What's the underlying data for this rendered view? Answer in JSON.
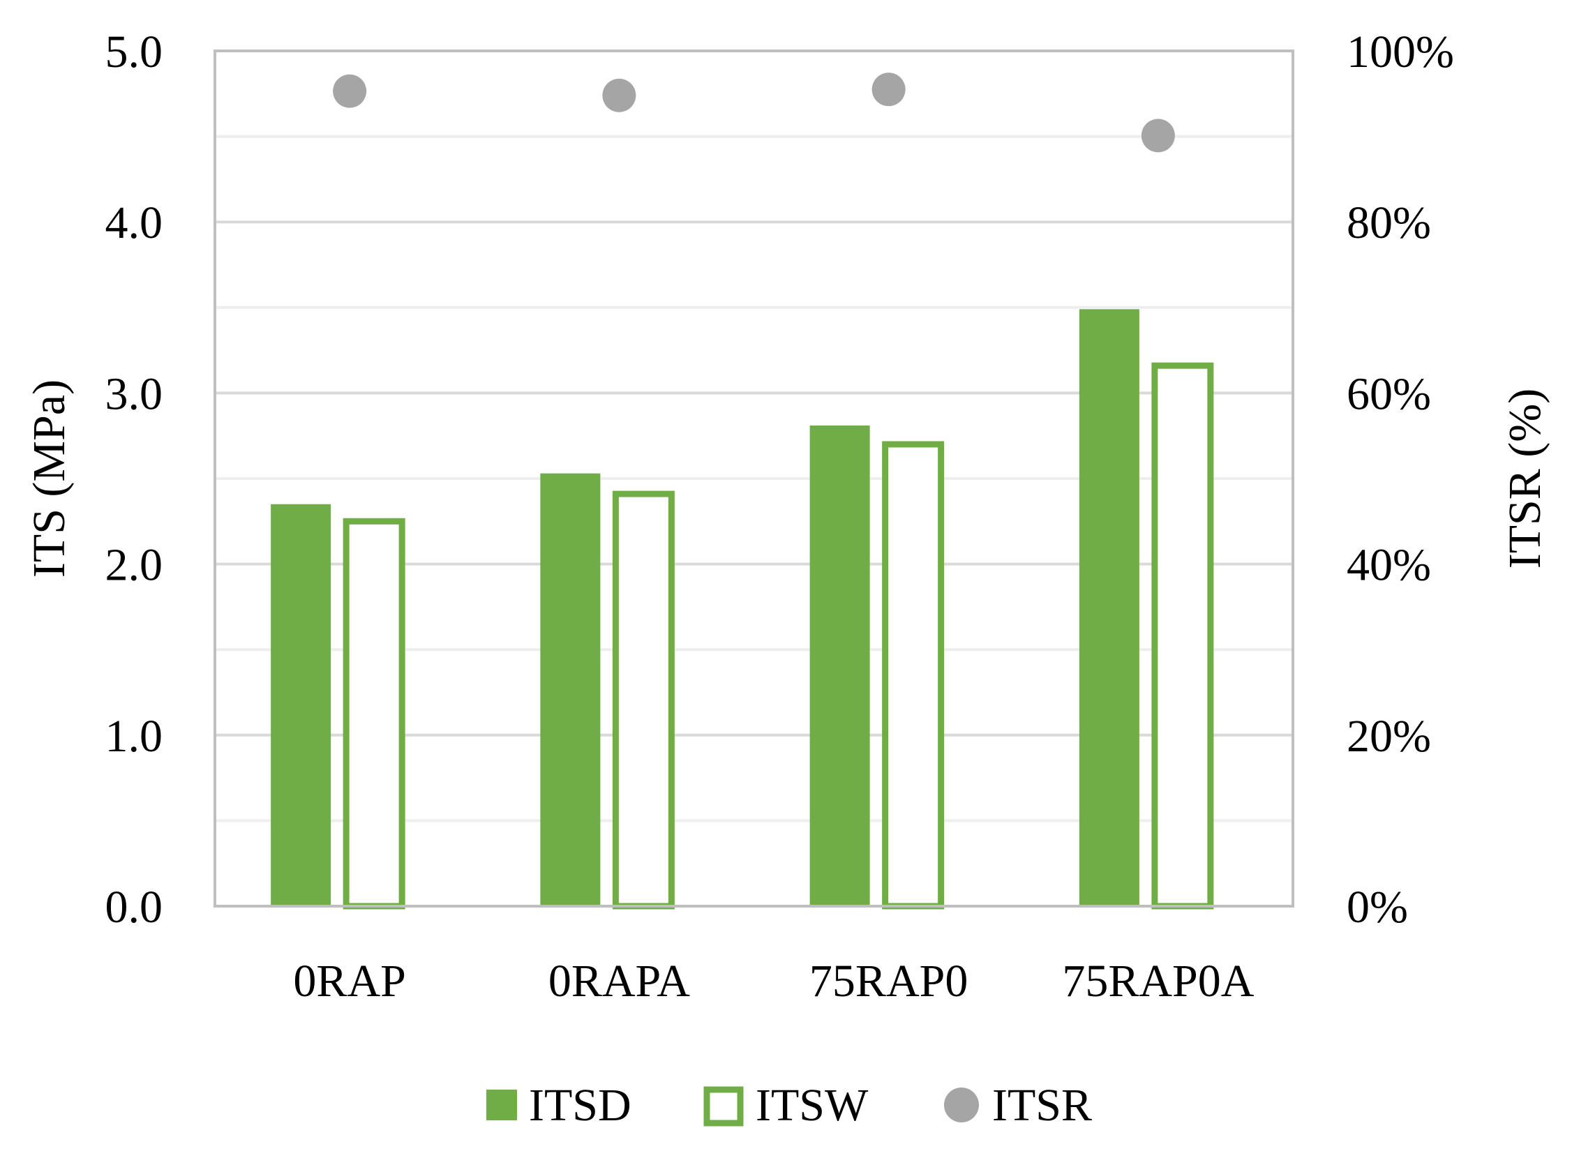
{
  "chart_data": {
    "type": "bar",
    "categories": [
      "0RAP",
      "0RAPA",
      "75RAP0",
      "75RAP0A"
    ],
    "series": [
      {
        "name": "ITSD",
        "kind": "bar",
        "axis": "left",
        "style": "filled",
        "values": [
          2.35,
          2.53,
          2.81,
          3.49
        ]
      },
      {
        "name": "ITSW",
        "kind": "bar",
        "axis": "left",
        "style": "outline",
        "values": [
          2.25,
          2.41,
          2.7,
          3.16
        ]
      },
      {
        "name": "ITSR",
        "kind": "scatter",
        "axis": "right",
        "values": [
          95.3,
          94.8,
          95.5,
          90.1
        ]
      }
    ],
    "ylabel": "ITS (MPa)",
    "y2label": "ITSR (%)",
    "ylim": [
      0,
      5
    ],
    "y2lim": [
      0,
      100
    ],
    "yticks": [
      "0.0",
      "1.0",
      "2.0",
      "3.0",
      "4.0",
      "5.0"
    ],
    "y2ticks": [
      "0%",
      "20%",
      "40%",
      "60%",
      "80%",
      "100%"
    ],
    "grid": true,
    "legend_position": "bottom",
    "colors": {
      "bar": "#70ad47",
      "marker": "#a5a5a5",
      "grid": "#d9d9d9",
      "minor_grid": "#eeeeee",
      "frame": "#bfbfbf"
    }
  }
}
